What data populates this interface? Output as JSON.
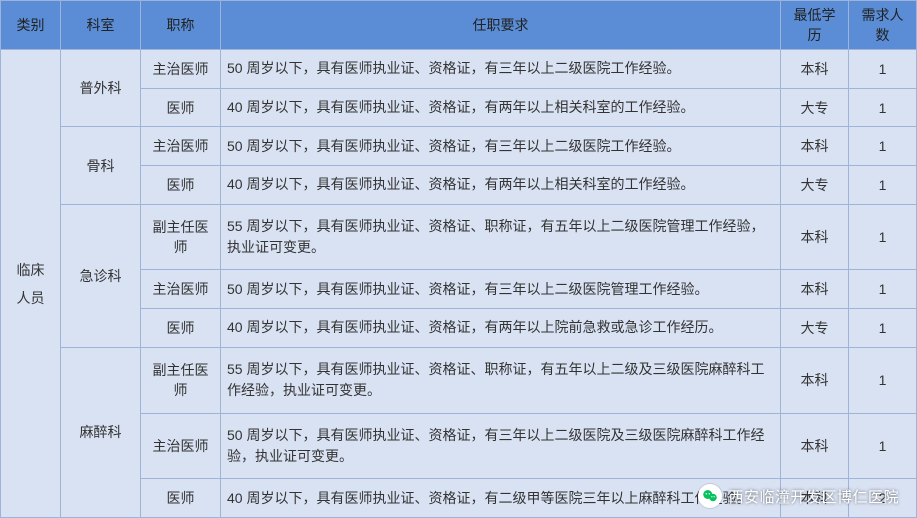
{
  "colors": {
    "header_bg": "#5a8dd6",
    "body_bg": "#d9e2f3",
    "border": "#9db3d9",
    "text": "#333333"
  },
  "headers": {
    "category": "类别",
    "department": "科室",
    "title": "职称",
    "requirement": "任职要求",
    "education": "最低学历",
    "count": "需求人数"
  },
  "category_label": "临床人员",
  "departments": [
    {
      "name": "普外科",
      "rows": [
        {
          "title": "主治医师",
          "requirement": "50 周岁以下，具有医师执业证、资格证，有三年以上二级医院工作经验。",
          "education": "本科",
          "count": "1"
        },
        {
          "title": "医师",
          "requirement": "40 周岁以下，具有医师执业证、资格证，有两年以上相关科室的工作经验。",
          "education": "大专",
          "count": "1"
        }
      ]
    },
    {
      "name": "骨科",
      "rows": [
        {
          "title": "主治医师",
          "requirement": "50 周岁以下，具有医师执业证、资格证，有三年以上二级医院工作经验。",
          "education": "本科",
          "count": "1"
        },
        {
          "title": "医师",
          "requirement": "40 周岁以下，具有医师执业证、资格证，有两年以上相关科室的工作经验。",
          "education": "大专",
          "count": "1"
        }
      ]
    },
    {
      "name": "急诊科",
      "rows": [
        {
          "title": "副主任医师",
          "requirement": "55 周岁以下，具有医师执业证、资格证、职称证，有五年以上二级医院管理工作经验，执业证可变更。",
          "education": "本科",
          "count": "1"
        },
        {
          "title": "主治医师",
          "requirement": "50 周岁以下，具有医师执业证、资格证，有三年以上二级医院管理工作经验。",
          "education": "本科",
          "count": "1"
        },
        {
          "title": "医师",
          "requirement": "40 周岁以下，具有医师执业证、资格证，有两年以上院前急救或急诊工作经历。",
          "education": "大专",
          "count": "1"
        }
      ]
    },
    {
      "name": "麻醉科",
      "rows": [
        {
          "title": "副主任医师",
          "requirement": "55 周岁以下，具有医师执业证、资格证、职称证，有五年以上二级及三级医院麻醉科工作经验，执业证可变更。",
          "education": "本科",
          "count": "1"
        },
        {
          "title": "主治医师",
          "requirement": "50 周岁以下，具有医师执业证、资格证，有三年以上二级医院及三级医院麻醉科工作经验，执业证可变更。",
          "education": "本科",
          "count": "1"
        },
        {
          "title": "医师",
          "requirement": "40 周岁以下，具有医师执业证、资格证，有二级甲等医院三年以上麻醉科工作经验。",
          "education": "本科",
          "count": "2"
        }
      ]
    }
  ],
  "watermark": {
    "text": "西安临潼开发区博仁医院",
    "logo_stroke": "#07c160"
  }
}
